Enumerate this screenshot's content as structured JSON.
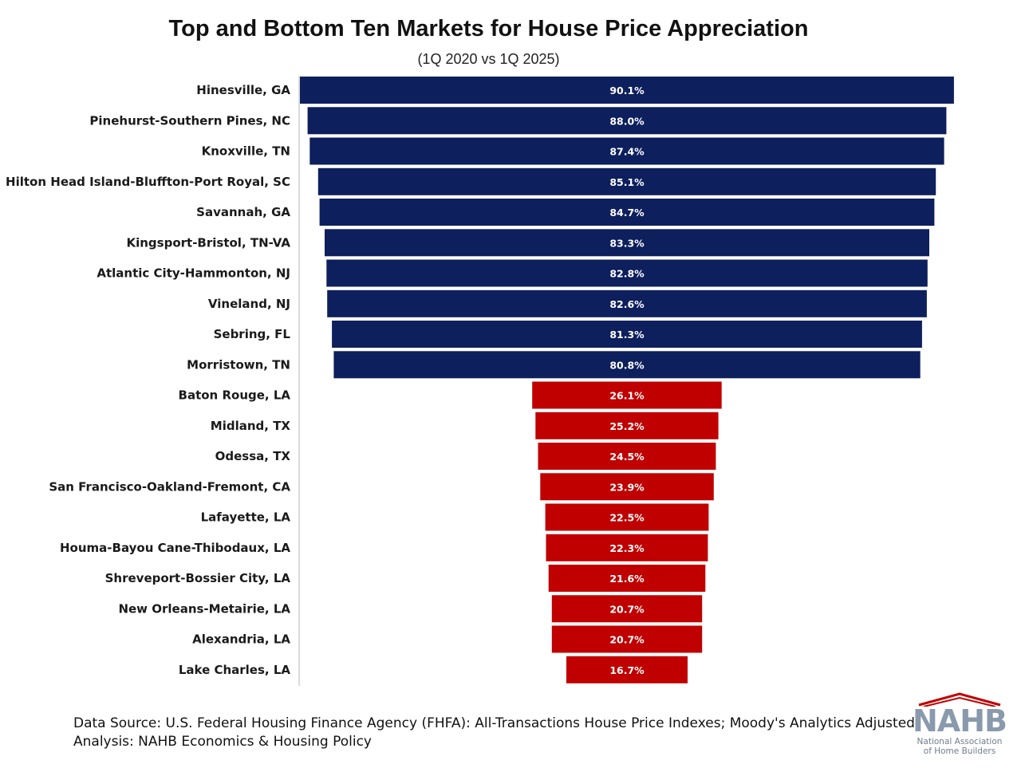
{
  "chart_data": {
    "type": "bar",
    "orientation": "horizontal",
    "title": "Top and Bottom Ten Markets for House Price Appreciation",
    "subtitle": "(1Q 2020 vs 1Q 2025)",
    "categories": [
      "Hinesville, GA",
      "Pinehurst-Southern Pines, NC",
      "Knoxville, TN",
      "Hilton Head Island-Bluffton-Port Royal, SC",
      "Savannah, GA",
      "Kingsport-Bristol, TN-VA",
      "Atlantic City-Hammonton, NJ",
      "Vineland, NJ",
      "Sebring, FL",
      "Morristown, TN",
      "Baton Rouge, LA",
      "Midland, TX",
      "Odessa, TX",
      "San Francisco-Oakland-Fremont, CA",
      "Lafayette, LA",
      "Houma-Bayou Cane-Thibodaux, LA",
      "Shreveport-Bossier City, LA",
      "New Orleans-Metairie, LA",
      "Alexandria, LA",
      "Lake Charles, LA"
    ],
    "values": [
      90.1,
      88.0,
      87.4,
      85.1,
      84.7,
      83.3,
      82.8,
      82.6,
      81.3,
      80.8,
      26.1,
      25.2,
      24.5,
      23.9,
      22.5,
      22.3,
      21.6,
      20.7,
      20.7,
      16.7
    ],
    "value_labels": [
      "90.1%",
      "88.0%",
      "87.4%",
      "85.1%",
      "84.7%",
      "83.3%",
      "82.8%",
      "82.6%",
      "81.3%",
      "80.8%",
      "26.1%",
      "25.2%",
      "24.5%",
      "23.9%",
      "22.5%",
      "22.3%",
      "21.6%",
      "20.7%",
      "20.7%",
      "16.7%"
    ],
    "groups": [
      "top",
      "top",
      "top",
      "top",
      "top",
      "top",
      "top",
      "top",
      "top",
      "top",
      "bottom",
      "bottom",
      "bottom",
      "bottom",
      "bottom",
      "bottom",
      "bottom",
      "bottom",
      "bottom",
      "bottom"
    ],
    "colors": {
      "top": "#0d1f5c",
      "bottom": "#c00000"
    },
    "bar_alignment": "centered",
    "grid": false,
    "legend": "none"
  },
  "footer": {
    "source": "Data Source: U.S. Federal Housing Finance Agency (FHFA): All-Transactions House Price Indexes; Moody's Analytics Adjusted.",
    "analysis": "Analysis: NAHB Economics & Housing Policy"
  },
  "logo": {
    "text": "NAHB",
    "line1": "National Association",
    "line2": "of Home Builders"
  }
}
